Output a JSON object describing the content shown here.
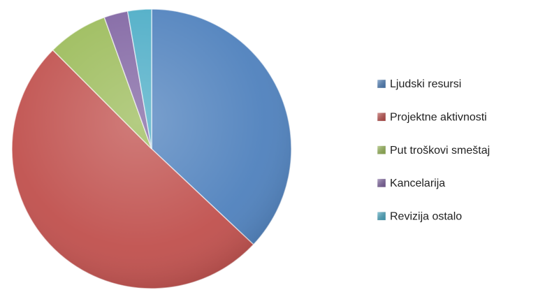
{
  "chart_data": {
    "type": "pie",
    "categories": [
      "Ljudski resursi",
      "Projektne aktivnosti",
      "Put troškovi smeštaj",
      "Kancelarija",
      "Revizija ostalo"
    ],
    "values": [
      37,
      50.5,
      7,
      2.75,
      2.75
    ],
    "colors": [
      "#4f81bd",
      "#c0504d",
      "#9bbb59",
      "#8064a2",
      "#4bacc6"
    ],
    "legend": "right"
  }
}
